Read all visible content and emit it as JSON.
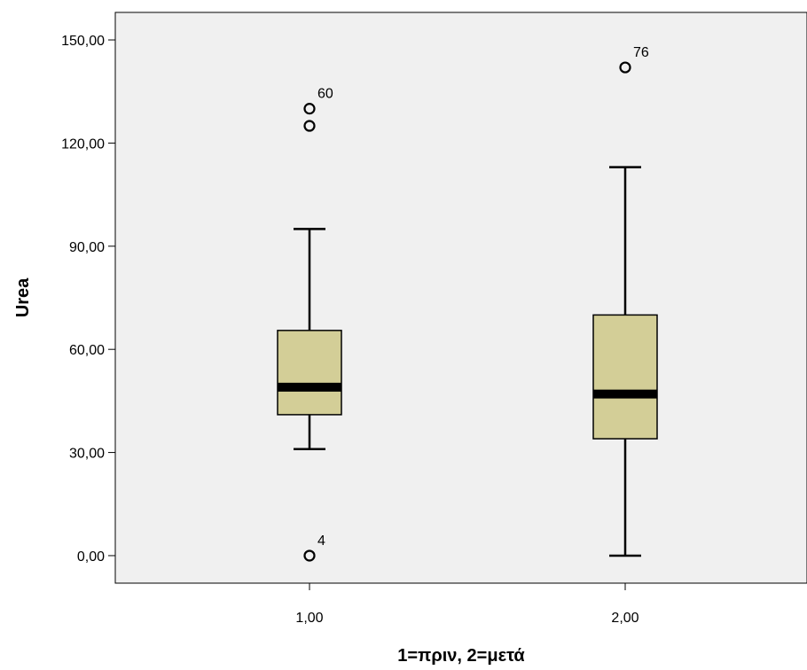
{
  "chart_data": {
    "type": "boxplot",
    "xlabel": "1=πριν, 2=μετά",
    "ylabel": "Urea",
    "ylim": [
      -8,
      158
    ],
    "yticks": [
      "0,00",
      "30,00",
      "60,00",
      "90,00",
      "120,00",
      "150,00"
    ],
    "ytick_values": [
      0,
      30,
      60,
      90,
      120,
      150
    ],
    "grid": false,
    "colors": {
      "plot_background": "#f0f0f0",
      "box_fill": "#d3ce97",
      "stroke": "#000000"
    },
    "categories": [
      "1,00",
      "2,00"
    ],
    "boxes": [
      {
        "category": "1,00",
        "whisker_low": 31,
        "q1": 41,
        "median": 49,
        "q3": 65.5,
        "whisker_high": 95,
        "outliers": [
          {
            "value": 130,
            "label": "60"
          },
          {
            "value": 125,
            "label": ""
          },
          {
            "value": 0,
            "label": "4"
          }
        ]
      },
      {
        "category": "2,00",
        "whisker_low": 0,
        "q1": 34,
        "median": 47,
        "q3": 70,
        "whisker_high": 113,
        "outliers": [
          {
            "value": 142,
            "label": "76"
          }
        ]
      }
    ]
  }
}
